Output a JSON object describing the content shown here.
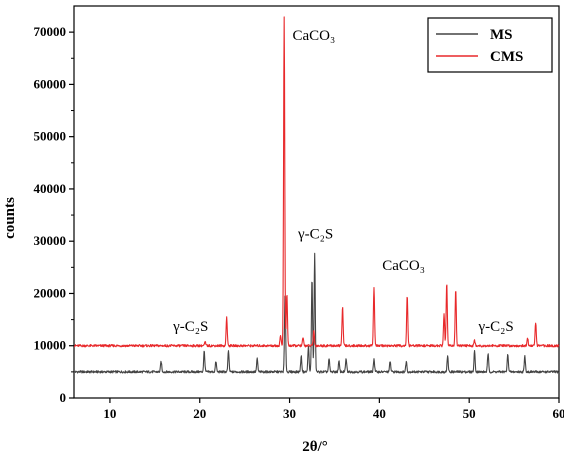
{
  "chart_data": {
    "type": "line",
    "xlabel": "2θ/°",
    "ylabel": "counts",
    "xlim": [
      6,
      60
    ],
    "ylim": [
      0,
      75000
    ],
    "x_ticks": [
      10,
      20,
      30,
      40,
      50,
      60
    ],
    "y_ticks": [
      0,
      10000,
      20000,
      30000,
      40000,
      50000,
      60000,
      70000
    ],
    "legend_position": "top-right",
    "series": [
      {
        "name": "MS",
        "color": "#444444",
        "baseline": 5000,
        "peaks": [
          [
            15.7,
            2000
          ],
          [
            20.5,
            4000
          ],
          [
            21.8,
            2000
          ],
          [
            23.2,
            4000
          ],
          [
            26.4,
            2500
          ],
          [
            29.5,
            15000
          ],
          [
            31.3,
            3000
          ],
          [
            32.1,
            5000
          ],
          [
            32.5,
            18000
          ],
          [
            32.8,
            22500
          ],
          [
            34.4,
            2500
          ],
          [
            35.5,
            2000
          ],
          [
            36.3,
            2500
          ],
          [
            39.4,
            2500
          ],
          [
            41.2,
            2000
          ],
          [
            43.0,
            2000
          ],
          [
            47.6,
            3000
          ],
          [
            50.6,
            4000
          ],
          [
            52.1,
            3500
          ],
          [
            54.3,
            3500
          ],
          [
            56.2,
            3000
          ]
        ]
      },
      {
        "name": "CMS",
        "color": "#e8292b",
        "baseline": 10000,
        "peaks": [
          [
            20.6,
            700
          ],
          [
            23.0,
            5500
          ],
          [
            29.0,
            2000
          ],
          [
            29.4,
            63000
          ],
          [
            29.7,
            10000
          ],
          [
            31.5,
            1500
          ],
          [
            32.7,
            3000
          ],
          [
            35.9,
            7500
          ],
          [
            39.4,
            11200
          ],
          [
            43.1,
            9500
          ],
          [
            47.2,
            6000
          ],
          [
            47.5,
            12000
          ],
          [
            48.5,
            11000
          ],
          [
            50.6,
            1000
          ],
          [
            56.5,
            1500
          ],
          [
            57.4,
            4500
          ]
        ]
      }
    ],
    "annotations": [
      {
        "text": "CaCO₃",
        "x": 32.7,
        "y": 68500
      },
      {
        "text": "γ-C₂S",
        "x": 32.9,
        "y": 30500
      },
      {
        "text": "CaCO₃",
        "x": 42.7,
        "y": 24500
      },
      {
        "text": "γ-C₂S",
        "x": 19.0,
        "y": 12800
      },
      {
        "text": "γ-C₂S",
        "x": 53.0,
        "y": 12800
      }
    ]
  }
}
